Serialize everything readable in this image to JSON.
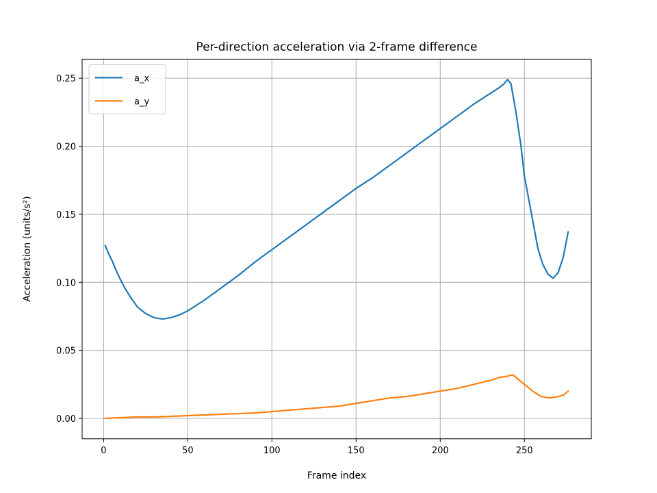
{
  "chart_data": {
    "type": "line",
    "title": "Per-direction acceleration via 2-frame difference",
    "xlabel": "Frame index",
    "ylabel": "Acceleration (units/s²)",
    "xlim": [
      -12.75,
      289.75
    ],
    "ylim": [
      -0.015,
      0.264
    ],
    "xticks": [
      0,
      50,
      100,
      150,
      200,
      250
    ],
    "xtick_labels": [
      "0",
      "50",
      "100",
      "150",
      "200",
      "250"
    ],
    "yticks": [
      0.0,
      0.05,
      0.1,
      0.15,
      0.2,
      0.25
    ],
    "ytick_labels": [
      "0.00",
      "0.05",
      "0.10",
      "0.15",
      "0.20",
      "0.25"
    ],
    "grid": true,
    "legend_position": "upper-left",
    "series": [
      {
        "name": "a_x",
        "color": "#1f77b4",
        "x": [
          1,
          3,
          5,
          7,
          10,
          13,
          16,
          20,
          25,
          30,
          35,
          40,
          45,
          50,
          55,
          60,
          70,
          80,
          90,
          100,
          110,
          120,
          130,
          140,
          150,
          160,
          170,
          180,
          190,
          200,
          210,
          220,
          230,
          235,
          238,
          240,
          242,
          245,
          248,
          250,
          252,
          255,
          258,
          261,
          264,
          267,
          270,
          273,
          276
        ],
        "values": [
          0.127,
          0.121,
          0.116,
          0.11,
          0.102,
          0.095,
          0.089,
          0.082,
          0.077,
          0.074,
          0.073,
          0.074,
          0.076,
          0.079,
          0.083,
          0.087,
          0.096,
          0.105,
          0.115,
          0.124,
          0.133,
          0.142,
          0.151,
          0.16,
          0.169,
          0.177,
          0.186,
          0.195,
          0.204,
          0.213,
          0.222,
          0.231,
          0.239,
          0.243,
          0.246,
          0.249,
          0.246,
          0.225,
          0.2,
          0.178,
          0.165,
          0.145,
          0.125,
          0.113,
          0.106,
          0.103,
          0.107,
          0.118,
          0.137
        ]
      },
      {
        "name": "a_y",
        "color": "#ff7f0e",
        "x": [
          1,
          10,
          20,
          30,
          40,
          50,
          60,
          70,
          80,
          90,
          100,
          110,
          120,
          130,
          140,
          150,
          160,
          170,
          180,
          190,
          200,
          210,
          220,
          230,
          235,
          240,
          243,
          246,
          250,
          255,
          260,
          265,
          270,
          273,
          276
        ],
        "values": [
          0.0,
          0.0005,
          0.001,
          0.001,
          0.0015,
          0.002,
          0.0025,
          0.003,
          0.0035,
          0.004,
          0.005,
          0.006,
          0.007,
          0.008,
          0.009,
          0.011,
          0.013,
          0.015,
          0.016,
          0.018,
          0.02,
          0.022,
          0.025,
          0.028,
          0.03,
          0.031,
          0.032,
          0.029,
          0.025,
          0.02,
          0.016,
          0.015,
          0.016,
          0.017,
          0.02
        ]
      }
    ]
  }
}
